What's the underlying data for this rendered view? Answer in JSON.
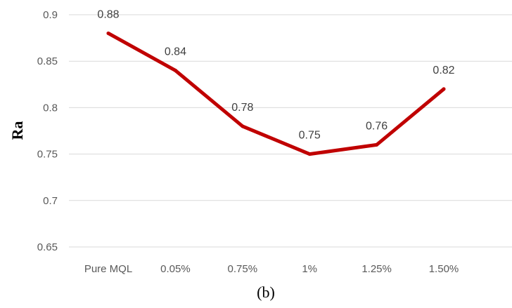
{
  "chart_data": {
    "type": "line",
    "categories": [
      "Pure MQL",
      "0.05%",
      "0.75%",
      "1%",
      "1.25%",
      "1.50%"
    ],
    "series": [
      {
        "values": [
          0.88,
          0.84,
          0.78,
          0.75,
          0.76,
          0.82
        ]
      }
    ],
    "data_labels": [
      "0.88",
      "0.84",
      "0.78",
      "0.75",
      "0.76",
      "0.82"
    ],
    "y_ticks": [
      "0.65",
      "0.7",
      "0.75",
      "0.8",
      "0.85",
      "0.9"
    ],
    "ylim": [
      0.65,
      0.9
    ],
    "ylabel": "Ra",
    "xlabel": "",
    "title": "",
    "grid": "horizontal",
    "line_color": "#C00000"
  },
  "caption": "(b)"
}
